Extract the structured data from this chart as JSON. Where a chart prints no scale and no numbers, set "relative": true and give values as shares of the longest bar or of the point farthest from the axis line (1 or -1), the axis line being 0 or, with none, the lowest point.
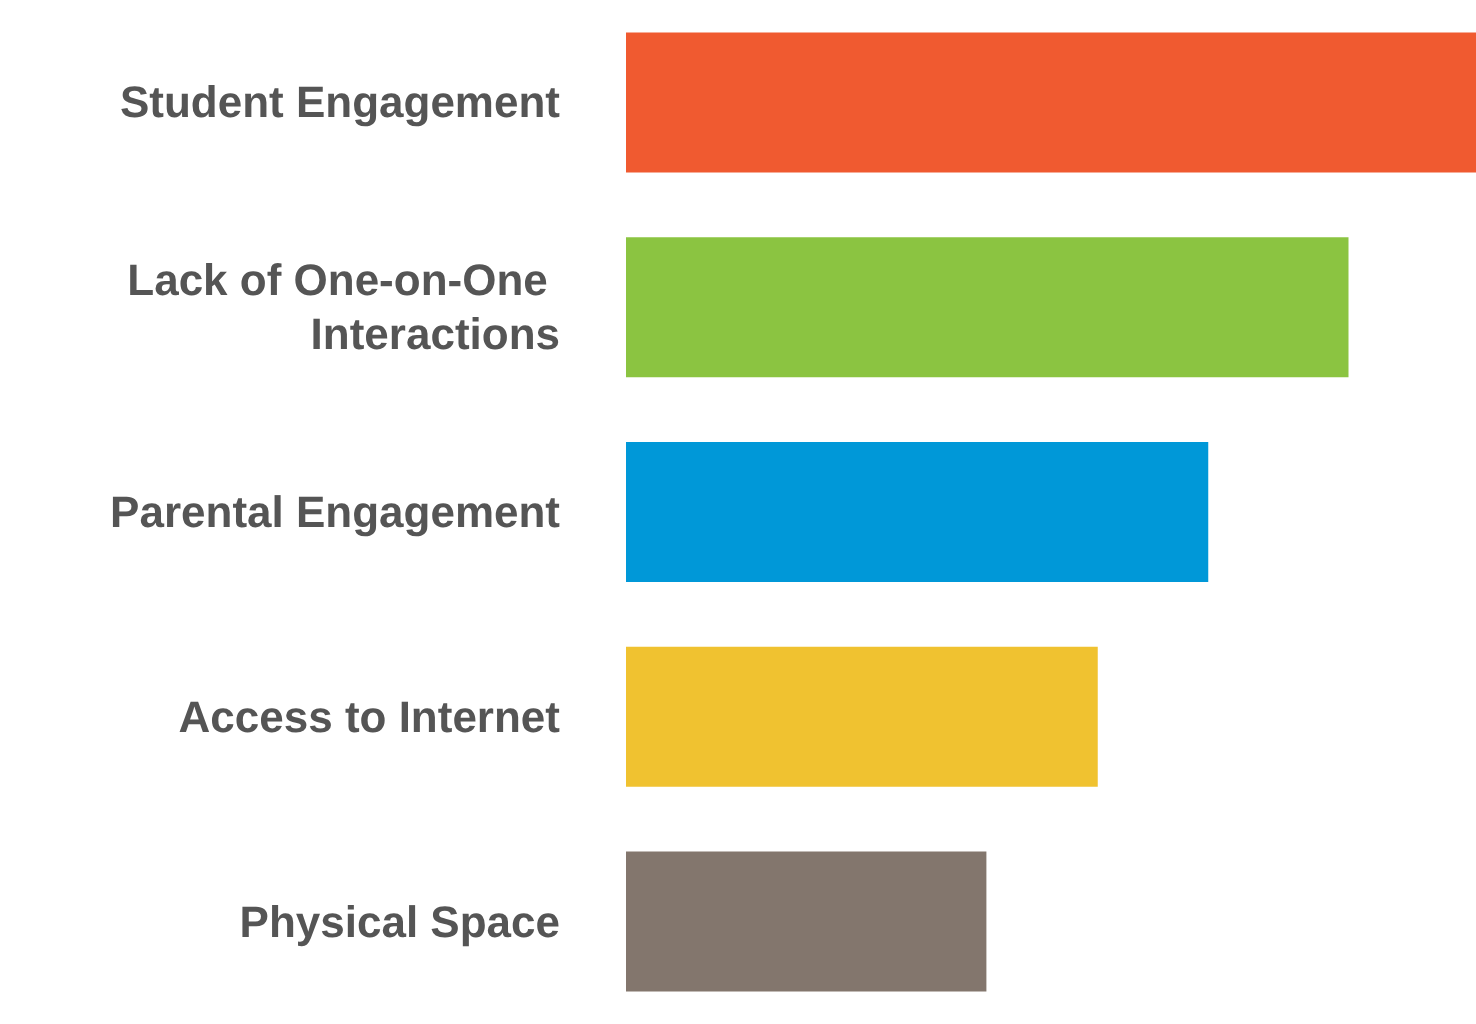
{
  "chart_data": {
    "type": "bar",
    "orientation": "horizontal",
    "relative": true,
    "categories": [
      "Student Engagement",
      "Lack of One-on-One Interactions",
      "Parental Engagement",
      "Access to Internet",
      "Physical Space"
    ],
    "values": [
      1,
      0.85,
      0.685,
      0.555,
      0.424
    ],
    "colors": [
      "#f05a30",
      "#8bc441",
      "#0098d8",
      "#f0c230",
      "#83766d"
    ]
  }
}
